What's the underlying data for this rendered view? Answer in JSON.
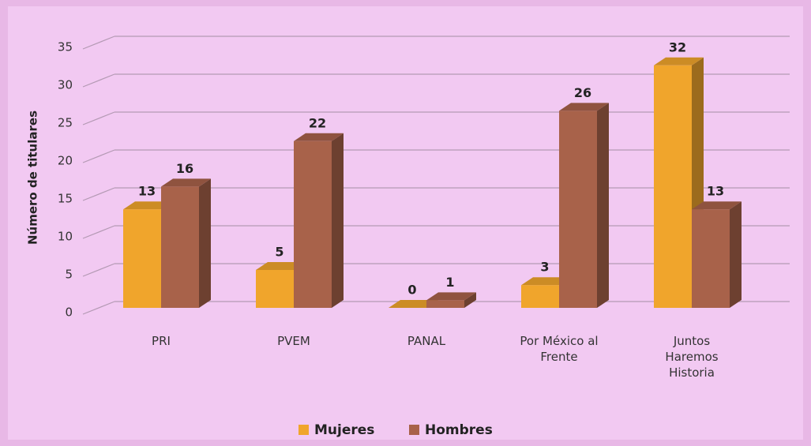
{
  "chart_data": {
    "type": "bar3d",
    "y_label": "Número de titulares",
    "categories": [
      "PRI",
      "PVEM",
      "PANAL",
      "Por México al Frente",
      "Juntos Haremos Historia"
    ],
    "series": [
      {
        "name": "Mujeres",
        "color": "#f0a52c",
        "values": [
          13,
          5,
          0,
          3,
          32
        ]
      },
      {
        "name": "Hombres",
        "color": "#a8624a",
        "values": [
          16,
          22,
          1,
          26,
          13
        ]
      }
    ],
    "ylim": [
      0,
      35
    ],
    "yticks": [
      0,
      5,
      10,
      15,
      20,
      25,
      30,
      35
    ],
    "grid": true,
    "legend": "bottom"
  }
}
